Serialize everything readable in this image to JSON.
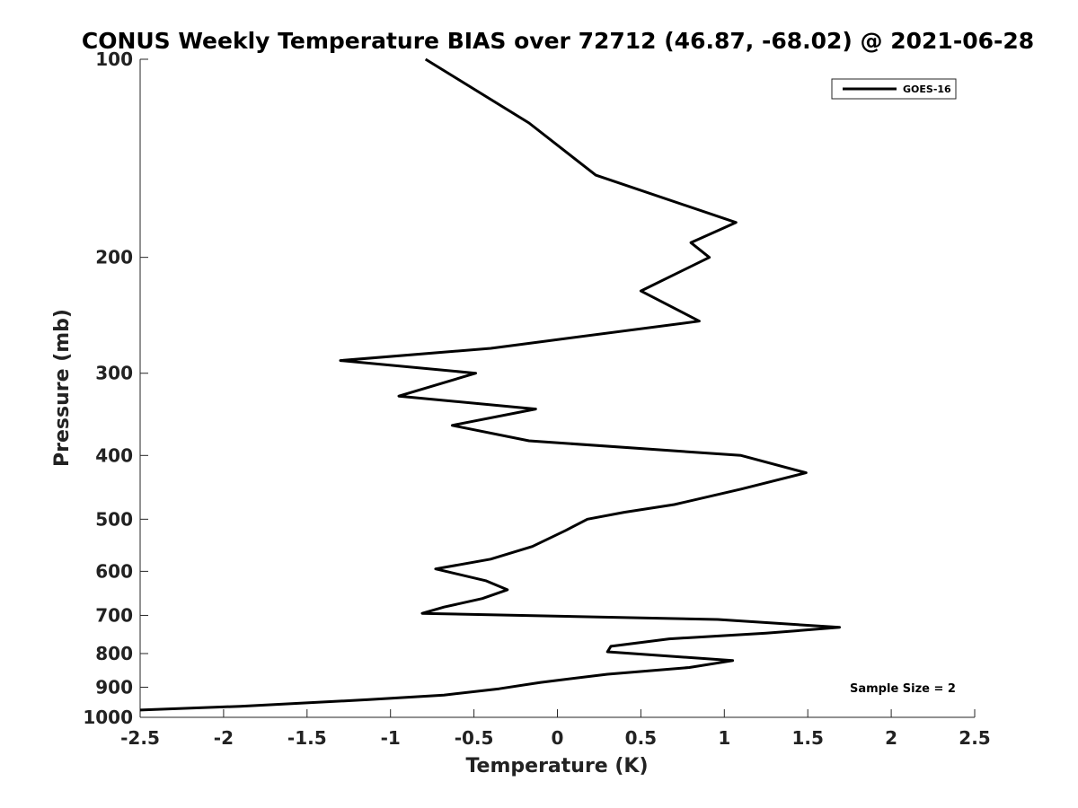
{
  "chart_data": {
    "type": "line",
    "title": "CONUS Weekly Temperature BIAS over 72712 (46.87, -68.02) @ 2021-06-28",
    "xlabel": "Temperature (K)",
    "ylabel": "Pressure (mb)",
    "xlim": [
      -2.5,
      2.5
    ],
    "ylim": [
      1000,
      100
    ],
    "yscale": "log",
    "ydirection": "reversed",
    "xticks": [
      -2.5,
      -2,
      -1.5,
      -1,
      -0.5,
      0,
      0.5,
      1,
      1.5,
      2,
      2.5
    ],
    "xtick_labels": [
      "-2.5",
      "-2",
      "-1.5",
      "-1",
      "-0.5",
      "0",
      "0.5",
      "1",
      "1.5",
      "2",
      "2.5"
    ],
    "yticks": [
      100,
      200,
      300,
      400,
      500,
      600,
      700,
      800,
      900,
      1000
    ],
    "ytick_labels": [
      "100",
      "200",
      "300",
      "400",
      "500",
      "600",
      "700",
      "800",
      "900",
      "1000"
    ],
    "grid": false,
    "legend": {
      "position": "top-right",
      "entries": [
        "GOES-16"
      ]
    },
    "annotations": [
      "Sample Size = 2"
    ],
    "series": [
      {
        "name": "GOES-16",
        "color": "#000000",
        "points": [
          {
            "x": -0.79,
            "p": 100
          },
          {
            "x": -0.17,
            "p": 125
          },
          {
            "x": 0.23,
            "p": 150
          },
          {
            "x": 1.07,
            "p": 177
          },
          {
            "x": 0.8,
            "p": 190
          },
          {
            "x": 0.91,
            "p": 200
          },
          {
            "x": 0.5,
            "p": 225
          },
          {
            "x": 0.85,
            "p": 250
          },
          {
            "x": -0.4,
            "p": 275
          },
          {
            "x": -1.3,
            "p": 287
          },
          {
            "x": -0.49,
            "p": 300
          },
          {
            "x": -0.95,
            "p": 325
          },
          {
            "x": -0.13,
            "p": 340
          },
          {
            "x": -0.63,
            "p": 360
          },
          {
            "x": -0.17,
            "p": 380
          },
          {
            "x": 1.1,
            "p": 400
          },
          {
            "x": 1.49,
            "p": 425
          },
          {
            "x": 1.1,
            "p": 450
          },
          {
            "x": 0.7,
            "p": 475
          },
          {
            "x": 0.4,
            "p": 488
          },
          {
            "x": 0.18,
            "p": 500
          },
          {
            "x": 0.05,
            "p": 520
          },
          {
            "x": -0.15,
            "p": 550
          },
          {
            "x": -0.4,
            "p": 575
          },
          {
            "x": -0.73,
            "p": 595
          },
          {
            "x": -0.43,
            "p": 620
          },
          {
            "x": -0.3,
            "p": 640
          },
          {
            "x": -0.45,
            "p": 660
          },
          {
            "x": -0.68,
            "p": 680
          },
          {
            "x": -0.81,
            "p": 695
          },
          {
            "x": 0.96,
            "p": 710
          },
          {
            "x": 1.69,
            "p": 730
          },
          {
            "x": 1.25,
            "p": 745
          },
          {
            "x": 0.67,
            "p": 760
          },
          {
            "x": 0.32,
            "p": 780
          },
          {
            "x": 0.3,
            "p": 795
          },
          {
            "x": 1.05,
            "p": 820
          },
          {
            "x": 0.79,
            "p": 840
          },
          {
            "x": 0.3,
            "p": 860
          },
          {
            "x": -0.1,
            "p": 885
          },
          {
            "x": -0.35,
            "p": 905
          },
          {
            "x": -0.68,
            "p": 925
          },
          {
            "x": -1.13,
            "p": 940
          },
          {
            "x": -1.9,
            "p": 962
          },
          {
            "x": -2.5,
            "p": 975
          }
        ]
      }
    ]
  }
}
